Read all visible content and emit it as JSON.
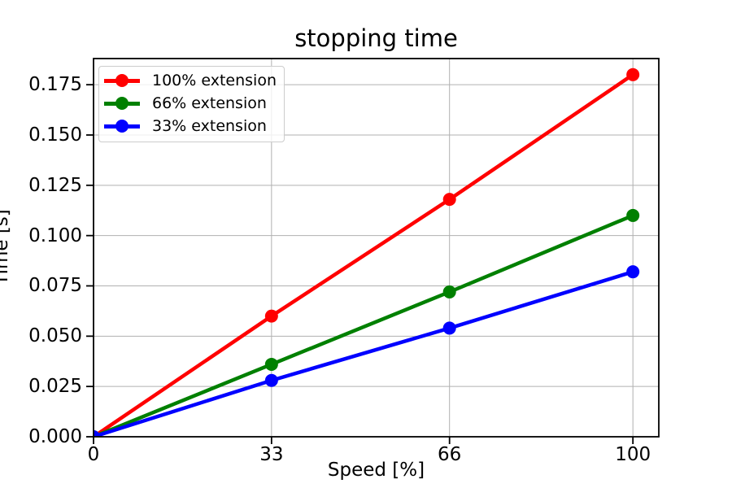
{
  "chart_data": {
    "type": "line",
    "title": "stopping time",
    "xlabel": "Speed [%]",
    "ylabel": "Time [s]",
    "x": [
      0,
      33,
      66,
      100
    ],
    "series": [
      {
        "name": "100% extension",
        "color": "#ff0000",
        "values": [
          0,
          0.06,
          0.118,
          0.18
        ]
      },
      {
        "name": "66% extension",
        "color": "#008000",
        "values": [
          0,
          0.036,
          0.072,
          0.11
        ]
      },
      {
        "name": "33% extension",
        "color": "#0000ff",
        "values": [
          0,
          0.028,
          0.054,
          0.082
        ]
      }
    ],
    "xticks": {
      "values": [
        0,
        33,
        66,
        100
      ],
      "labels": [
        "0",
        "33",
        "66",
        "100"
      ]
    },
    "yticks": {
      "values": [
        0,
        0.025,
        0.05,
        0.075,
        0.1,
        0.125,
        0.15,
        0.175
      ],
      "labels": [
        "0.000",
        "0.025",
        "0.050",
        "0.075",
        "0.100",
        "0.125",
        "0.150",
        "0.175"
      ]
    },
    "xlim": [
      0,
      104.8
    ],
    "ylim": [
      0,
      0.188
    ],
    "grid": true,
    "legend_position": "upper left",
    "colors": {
      "grid": "#b0b0b0",
      "spine": "#000000",
      "background": "#ffffff"
    }
  }
}
